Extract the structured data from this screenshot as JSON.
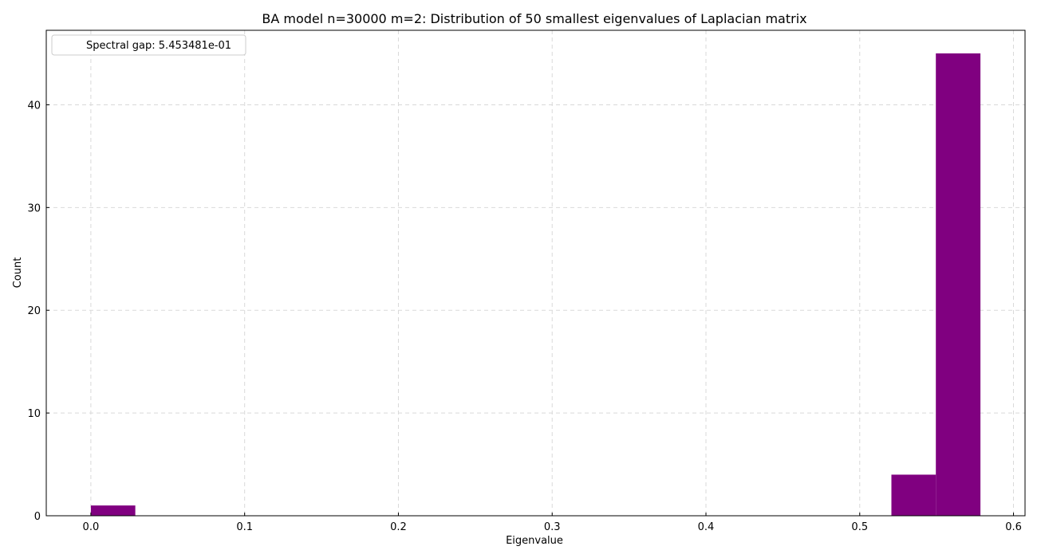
{
  "chart_data": {
    "type": "bar",
    "title": "BA model n=30000 m=2: Distribution of 50 smallest eigenvalues of Laplacian matrix",
    "xlabel": "Eigenvalue",
    "ylabel": "Count",
    "xlim": [
      -0.029,
      0.6075
    ],
    "ylim": [
      0,
      47.25
    ],
    "xticks": [
      0.0,
      0.1,
      0.2,
      0.3,
      0.4,
      0.5,
      0.6
    ],
    "xtick_labels": [
      "0.0",
      "0.1",
      "0.2",
      "0.3",
      "0.4",
      "0.5",
      "0.6"
    ],
    "yticks": [
      0,
      10,
      20,
      30,
      40
    ],
    "ytick_labels": [
      "0",
      "10",
      "20",
      "30",
      "40"
    ],
    "grid": true,
    "bar_color": "#800080",
    "bins": [
      {
        "x0": 0.0,
        "x1": 0.0289,
        "count": 1
      },
      {
        "x0": 0.5206,
        "x1": 0.5495,
        "count": 4
      },
      {
        "x0": 0.5495,
        "x1": 0.5785,
        "count": 45
      }
    ],
    "legend": {
      "placement": "upper-left",
      "entries": [
        "Spectral gap: 5.453481e-01"
      ]
    }
  }
}
